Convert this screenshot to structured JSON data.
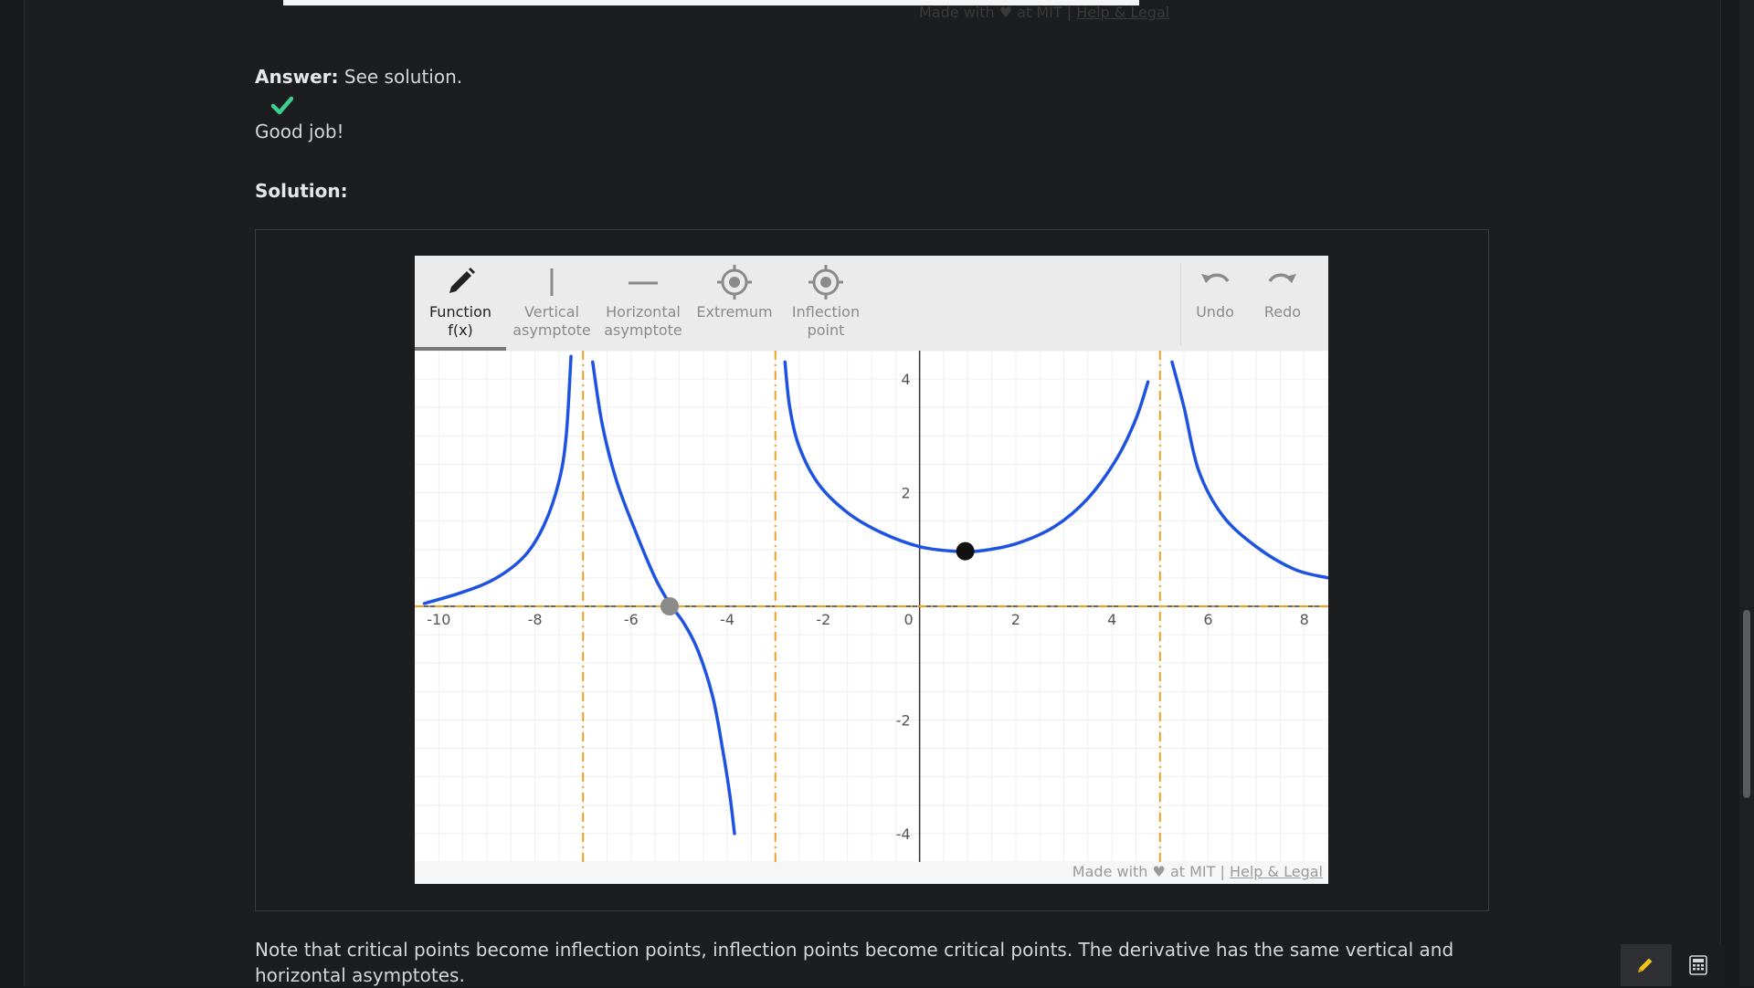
{
  "previous_widget": {
    "footer_made_with": "Made with ♥ at MIT |",
    "footer_link": "Help & Legal"
  },
  "answer": {
    "label": "Answer:",
    "value": "See solution."
  },
  "feedback": {
    "icon": "check-icon",
    "color": "#3ccf91",
    "text": "Good job!"
  },
  "solution": {
    "label": "Solution:"
  },
  "widget": {
    "tools": [
      {
        "line1": "Function",
        "line2": "f(x)",
        "icon": "pencil-icon",
        "active": true
      },
      {
        "line1": "Vertical",
        "line2": "asymptote",
        "icon": "vertical-line-icon",
        "active": false
      },
      {
        "line1": "Horizontal",
        "line2": "asymptote",
        "icon": "horizontal-line-icon",
        "active": false
      },
      {
        "line1": "Extremum",
        "line2": "",
        "icon": "target-icon",
        "active": false
      },
      {
        "line1": "Inflection",
        "line2": "point",
        "icon": "target-icon",
        "active": false
      }
    ],
    "undo_label": "Undo",
    "redo_label": "Redo",
    "footer_made_with": "Made with ♥ at MIT |",
    "footer_link": "Help & Legal"
  },
  "chart_data": {
    "type": "line",
    "xlim": [
      -10.5,
      8.5
    ],
    "ylim": [
      -4.5,
      4.5
    ],
    "x_ticks": [
      -10,
      -8,
      -6,
      -4,
      -2,
      0,
      2,
      4,
      6,
      8
    ],
    "y_ticks": [
      4,
      2,
      -2,
      -4
    ],
    "grid": true,
    "vertical_asymptotes": [
      -7,
      -3,
      5
    ],
    "horizontal_asymptote": 0,
    "asymptote_color": "#f0a020",
    "curve_color": "#1e52e0",
    "segments": [
      [
        [
          -10.3,
          0.05
        ],
        [
          -9.5,
          0.25
        ],
        [
          -8.8,
          0.5
        ],
        [
          -8.2,
          0.9
        ],
        [
          -7.8,
          1.45
        ],
        [
          -7.5,
          2.2
        ],
        [
          -7.35,
          3.0
        ],
        [
          -7.25,
          4.4
        ]
      ],
      [
        [
          -6.8,
          4.3
        ],
        [
          -6.6,
          3.2
        ],
        [
          -6.3,
          2.2
        ],
        [
          -5.9,
          1.3
        ],
        [
          -5.5,
          0.5
        ],
        [
          -5.2,
          0.05
        ],
        [
          -4.9,
          -0.3
        ],
        [
          -4.6,
          -0.8
        ],
        [
          -4.3,
          -1.6
        ],
        [
          -4.1,
          -2.5
        ],
        [
          -3.95,
          -3.3
        ],
        [
          -3.85,
          -4.0
        ]
      ],
      [
        [
          -2.8,
          4.3
        ],
        [
          -2.7,
          3.5
        ],
        [
          -2.5,
          2.8
        ],
        [
          -2.1,
          2.15
        ],
        [
          -1.5,
          1.65
        ],
        [
          -0.8,
          1.3
        ],
        [
          0,
          1.05
        ],
        [
          0.7,
          0.97
        ],
        [
          1.2,
          0.97
        ],
        [
          2,
          1.1
        ],
        [
          2.8,
          1.4
        ],
        [
          3.5,
          1.9
        ],
        [
          4.1,
          2.6
        ],
        [
          4.5,
          3.3
        ],
        [
          4.75,
          3.95
        ]
      ],
      [
        [
          5.25,
          4.3
        ],
        [
          5.5,
          3.5
        ],
        [
          5.8,
          2.4
        ],
        [
          6.3,
          1.6
        ],
        [
          7,
          1.05
        ],
        [
          7.8,
          0.65
        ],
        [
          8.5,
          0.5
        ]
      ]
    ],
    "points": [
      {
        "x": -5.2,
        "y": 0,
        "color": "#8a8a8a"
      },
      {
        "x": 0.95,
        "y": 0.97,
        "color": "#111111"
      }
    ]
  },
  "note": "Note that critical points become inflection points, inflection points become critical points. The derivative has the same vertical and horizontal asymptotes."
}
